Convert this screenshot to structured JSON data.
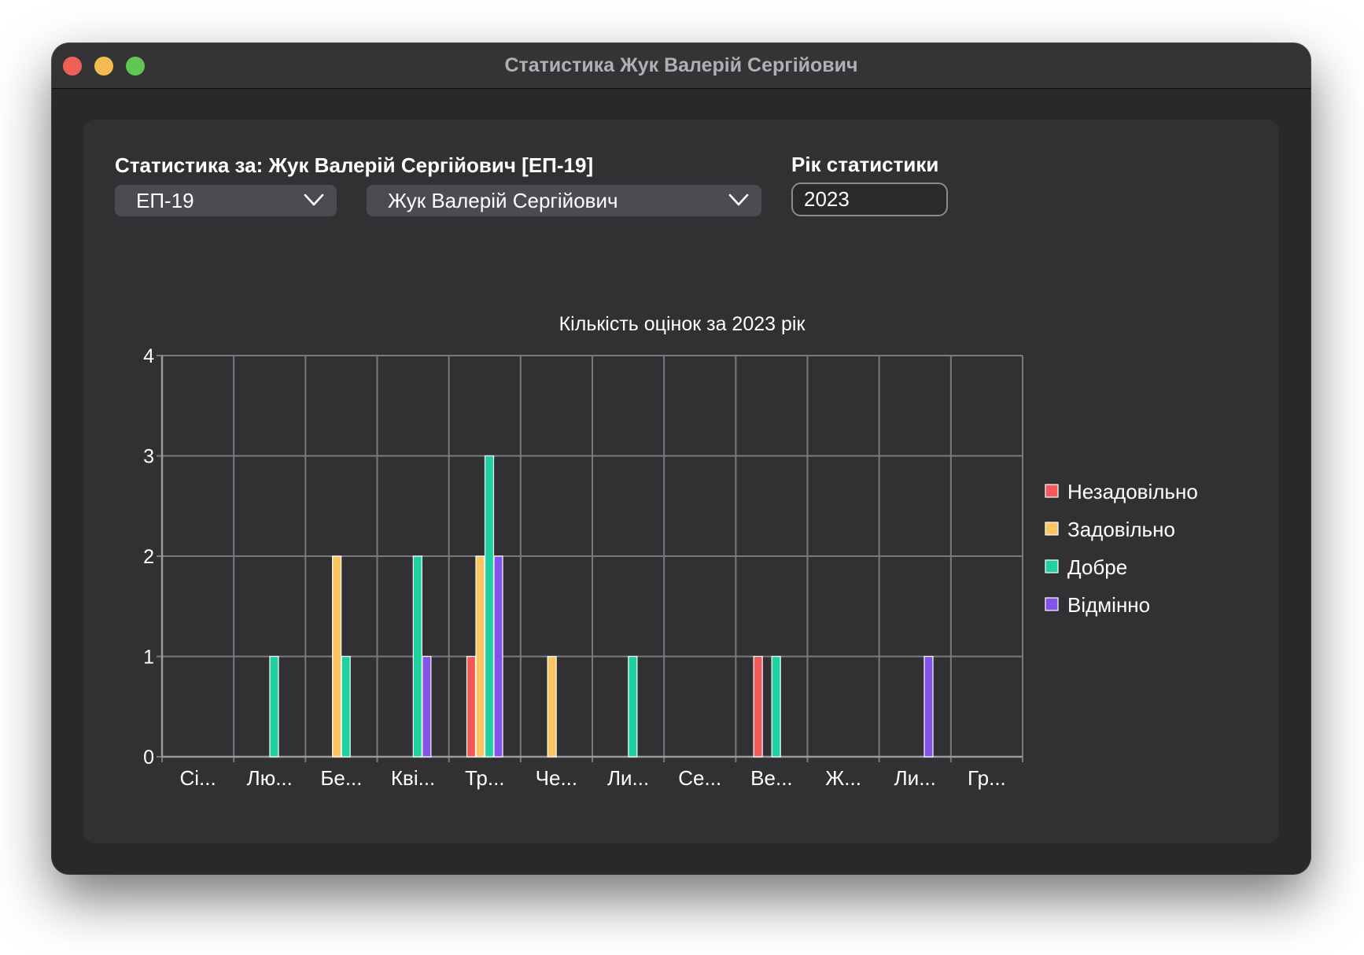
{
  "window": {
    "title": "Статистика Жук Валерій Сергійович"
  },
  "header": {
    "stats_for_label": "Статистика за: Жук Валерій Сергійович [ЕП-19]",
    "group_select_value": "ЕП-19",
    "student_select_value": "Жук Валерій Сергійович",
    "year_label": "Рік статистики",
    "year_value": "2023"
  },
  "colors": {
    "window_bg": "#29292b",
    "panel_bg": "#313134",
    "grid": "#7a7a7e",
    "fail": "#f25a5a",
    "satisfactory": "#fbc661",
    "good": "#1fd0a0",
    "excellent": "#8452ea"
  },
  "chart_data": {
    "type": "bar",
    "title": "Кількість оцінок за 2023 рік",
    "categories": [
      "Сі...",
      "Лю...",
      "Бе...",
      "Кві...",
      "Тр...",
      "Че...",
      "Ли...",
      "Се...",
      "Ве...",
      "Ж...",
      "Ли...",
      "Гр..."
    ],
    "series": [
      {
        "name": "Незадовільно",
        "color": "#f25a5a",
        "values": [
          0,
          0,
          0,
          0,
          1,
          0,
          0,
          0,
          1,
          0,
          0,
          0
        ]
      },
      {
        "name": "Задовільно",
        "color": "#fbc661",
        "values": [
          0,
          0,
          2,
          0,
          2,
          1,
          0,
          0,
          0,
          0,
          0,
          0
        ]
      },
      {
        "name": "Добре",
        "color": "#1fd0a0",
        "values": [
          0,
          1,
          1,
          2,
          3,
          0,
          1,
          0,
          1,
          0,
          0,
          0
        ]
      },
      {
        "name": "Відмінно",
        "color": "#8452ea",
        "values": [
          0,
          0,
          0,
          1,
          2,
          0,
          0,
          0,
          0,
          0,
          1,
          0
        ]
      }
    ],
    "ylim": [
      0,
      4
    ],
    "yticks": [
      "0",
      "1",
      "2",
      "3",
      "4"
    ],
    "grid": true,
    "legend_position": "right"
  }
}
